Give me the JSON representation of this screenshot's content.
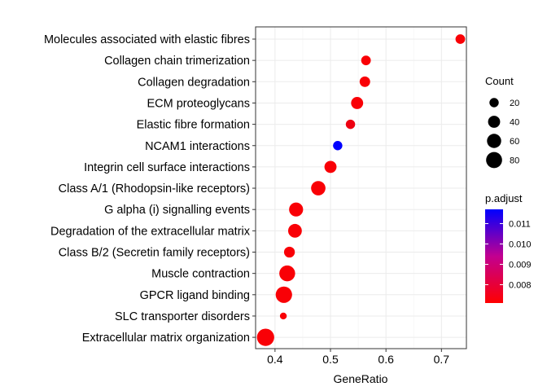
{
  "chart_data": {
    "type": "scatter",
    "xlabel": "GeneRatio",
    "ylabel": "",
    "xlim": [
      0.365,
      0.745
    ],
    "x_ticks": [
      0.4,
      0.5,
      0.6,
      0.7
    ],
    "x_tick_labels": [
      "0.4",
      "0.5",
      "0.6",
      "0.7"
    ],
    "grid": true,
    "legend_placement": "right",
    "categories": [
      "Molecules associated with elastic fibres",
      "Collagen chain trimerization",
      "Collagen degradation",
      "ECM proteoglycans",
      "Elastic fibre formation",
      "NCAM1 interactions",
      "Integrin cell surface interactions",
      "Class A/1 (Rhodopsin-like receptors)",
      "G alpha (i) signalling events",
      "Degradation of the extracellular matrix",
      "Class B/2 (Secretin family receptors)",
      "Muscle contraction",
      "GPCR ligand binding",
      "SLC transporter disorders",
      "Extracellular matrix organization"
    ],
    "points": [
      {
        "term": "Molecules associated with elastic fibres",
        "gene_ratio": 0.734,
        "count": 22,
        "p_adjust": 0.0072
      },
      {
        "term": "Collagen chain trimerization",
        "gene_ratio": 0.564,
        "count": 22,
        "p_adjust": 0.0072
      },
      {
        "term": "Collagen degradation",
        "gene_ratio": 0.562,
        "count": 28,
        "p_adjust": 0.0072
      },
      {
        "term": "ECM proteoglycans",
        "gene_ratio": 0.548,
        "count": 40,
        "p_adjust": 0.0072
      },
      {
        "term": "Elastic fibre formation",
        "gene_ratio": 0.536,
        "count": 20,
        "p_adjust": 0.0074
      },
      {
        "term": "NCAM1 interactions",
        "gene_ratio": 0.513,
        "count": 20,
        "p_adjust": 0.0117
      },
      {
        "term": "Integrin cell surface interactions",
        "gene_ratio": 0.5,
        "count": 40,
        "p_adjust": 0.0072
      },
      {
        "term": "Class A/1 (Rhodopsin-like receptors)",
        "gene_ratio": 0.478,
        "count": 62,
        "p_adjust": 0.0072
      },
      {
        "term": "G alpha (i) signalling events",
        "gene_ratio": 0.438,
        "count": 58,
        "p_adjust": 0.0072
      },
      {
        "term": "Degradation of the extracellular matrix",
        "gene_ratio": 0.436,
        "count": 55,
        "p_adjust": 0.0072
      },
      {
        "term": "Class B/2 (Secretin family receptors)",
        "gene_ratio": 0.426,
        "count": 30,
        "p_adjust": 0.0072
      },
      {
        "term": "Muscle contraction",
        "gene_ratio": 0.422,
        "count": 78,
        "p_adjust": 0.0072
      },
      {
        "term": "GPCR ligand binding",
        "gene_ratio": 0.416,
        "count": 85,
        "p_adjust": 0.0072
      },
      {
        "term": "SLC transporter disorders",
        "gene_ratio": 0.415,
        "count": 8,
        "p_adjust": 0.0072
      },
      {
        "term": "Extracellular matrix organization",
        "gene_ratio": 0.383,
        "count": 96,
        "p_adjust": 0.0072
      }
    ],
    "size_legend": {
      "title": "Count",
      "values": [
        20,
        40,
        60,
        80
      ],
      "labels": [
        "20",
        "40",
        "60",
        "80"
      ]
    },
    "color_legend": {
      "title": "p.adjust",
      "range": [
        0.0071,
        0.0117
      ],
      "ticks": [
        0.008,
        0.009,
        0.01,
        0.011
      ],
      "tick_labels": [
        "0.008",
        "0.009",
        "0.010",
        "0.011"
      ],
      "low_color": "#ff0000",
      "high_color": "#0000ff"
    },
    "colors": {
      "panel_border": "#333333",
      "grid": "#ebebeb",
      "axis_text": "#000000"
    }
  }
}
